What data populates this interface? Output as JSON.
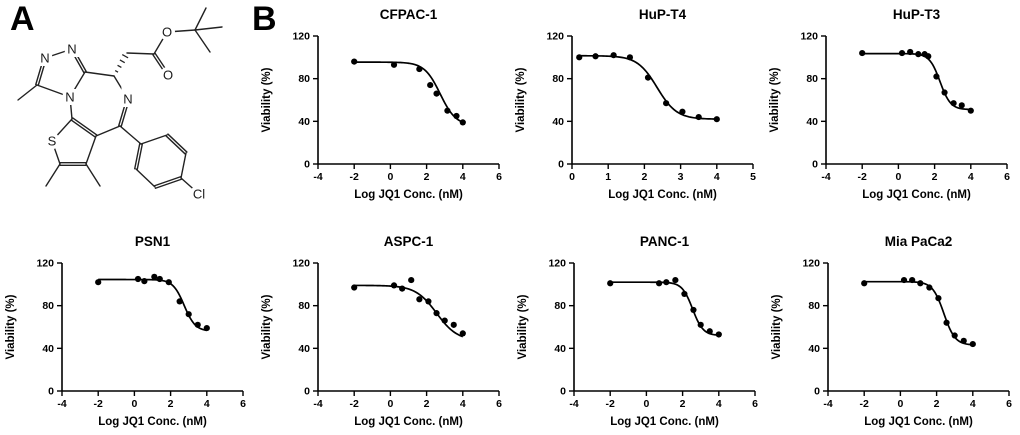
{
  "panel_a": {
    "label": "A",
    "molecule_name": "jq1-structure",
    "atom_labels": {
      "n1": "N",
      "n2": "N",
      "n4": "N",
      "n5": "N",
      "s": "S",
      "o_carbonyl": "O",
      "o_ester": "O",
      "cl": "Cl"
    }
  },
  "panel_b": {
    "label": "B"
  },
  "chart_data": [
    {
      "type": "scatter",
      "title": "CFPAC-1",
      "xlabel": "Log JQ1 Conc.  (nM)",
      "ylabel": "Viability (%)",
      "xlim": [
        -4,
        6
      ],
      "xticks": [
        -4,
        -2,
        0,
        2,
        4,
        6
      ],
      "ylim": [
        0,
        120
      ],
      "yticks": [
        0,
        40,
        80,
        120
      ],
      "grid": false,
      "legend": null,
      "marker": "filled-circle",
      "color": "#000000",
      "x": [
        -2,
        0.2,
        1.6,
        2.2,
        2.55,
        3.15,
        3.65,
        4.0
      ],
      "y": [
        96,
        93,
        89,
        74,
        66,
        50,
        45,
        39
      ],
      "fit_curve": {
        "model": "four-parameter-logistic",
        "top": 95.5,
        "bottom": 36,
        "logec50": 2.75,
        "hill": 1.0
      }
    },
    {
      "type": "scatter",
      "title": "HuP-T4",
      "xlabel": "Log JQ1 Conc.  (nM)",
      "ylabel": "Viability (%)",
      "xlim": [
        0,
        5
      ],
      "xticks": [
        0,
        1,
        2,
        3,
        4,
        5
      ],
      "ylim": [
        0,
        120
      ],
      "yticks": [
        0,
        40,
        80,
        120
      ],
      "grid": false,
      "legend": null,
      "marker": "filled-circle",
      "color": "#000000",
      "x": [
        0.2,
        0.65,
        1.15,
        1.6,
        2.1,
        2.6,
        3.05,
        3.5,
        4.0
      ],
      "y": [
        100,
        101,
        102,
        100,
        81,
        57,
        49,
        44,
        42
      ],
      "fit_curve": {
        "model": "four-parameter-logistic",
        "top": 101.5,
        "bottom": 42,
        "logec50": 2.35,
        "hill": 1.6
      }
    },
    {
      "type": "scatter",
      "title": "HuP-T3",
      "xlabel": "Log JQ1 Conc.  (nM)",
      "ylabel": "Viability (%)",
      "xlim": [
        -4,
        6
      ],
      "xticks": [
        -4,
        -2,
        0,
        2,
        4,
        6
      ],
      "ylim": [
        0,
        120
      ],
      "yticks": [
        0,
        40,
        80,
        120
      ],
      "grid": false,
      "legend": null,
      "marker": "filled-circle",
      "color": "#000000",
      "x": [
        -2,
        0.2,
        0.65,
        1.1,
        1.45,
        1.65,
        2.1,
        2.55,
        3.05,
        3.5,
        4.0
      ],
      "y": [
        104,
        104,
        105,
        103,
        103,
        101,
        82,
        67,
        57,
        55,
        50
      ],
      "fit_curve": {
        "model": "four-parameter-logistic",
        "top": 103.5,
        "bottom": 51,
        "logec50": 2.3,
        "hill": 1.5
      }
    },
    {
      "type": "scatter",
      "title": "PSN1",
      "xlabel": "Log JQ1 Conc.  (nM)",
      "ylabel": "Viability (%)",
      "xlim": [
        -4,
        6
      ],
      "xticks": [
        -4,
        -2,
        0,
        2,
        4,
        6
      ],
      "ylim": [
        0,
        120
      ],
      "yticks": [
        0,
        40,
        80,
        120
      ],
      "grid": false,
      "legend": null,
      "marker": "filled-circle",
      "color": "#000000",
      "x": [
        -2,
        0.2,
        0.55,
        1.1,
        1.4,
        1.9,
        2.5,
        3.0,
        3.5,
        4.0
      ],
      "y": [
        102,
        105,
        103,
        107,
        105,
        102,
        84,
        72,
        62,
        59
      ],
      "fit_curve": {
        "model": "four-parameter-logistic",
        "top": 104.5,
        "bottom": 56,
        "logec50": 2.75,
        "hill": 1.4
      }
    },
    {
      "type": "scatter",
      "title": "ASPC-1",
      "xlabel": "Log JQ1 Conc.  (nM)",
      "ylabel": "Viability (%)",
      "xlim": [
        -4,
        6
      ],
      "xticks": [
        -4,
        -2,
        0,
        2,
        4,
        6
      ],
      "ylim": [
        0,
        120
      ],
      "yticks": [
        0,
        40,
        80,
        120
      ],
      "grid": false,
      "legend": null,
      "marker": "filled-circle",
      "color": "#000000",
      "x": [
        -2,
        0.2,
        0.65,
        1.15,
        1.6,
        2.1,
        2.55,
        3.0,
        3.5,
        4.0
      ],
      "y": [
        97,
        99,
        96,
        104,
        86,
        84,
        73,
        66,
        62,
        54
      ],
      "fit_curve": {
        "model": "four-parameter-logistic",
        "top": 99,
        "bottom": 47,
        "logec50": 2.55,
        "hill": 0.75
      }
    },
    {
      "type": "scatter",
      "title": "PANC-1",
      "xlabel": "Log JQ1 Conc.  (nM)",
      "ylabel": "Viability (%)",
      "xlim": [
        -4,
        6
      ],
      "xticks": [
        -4,
        -2,
        0,
        2,
        4,
        6
      ],
      "ylim": [
        0,
        120
      ],
      "yticks": [
        0,
        40,
        80,
        120
      ],
      "grid": false,
      "legend": null,
      "marker": "filled-circle",
      "color": "#000000",
      "x": [
        -2,
        0.7,
        1.1,
        1.6,
        2.1,
        2.6,
        3.0,
        3.5,
        4.0
      ],
      "y": [
        101,
        101,
        102,
        104,
        91,
        76,
        62,
        56,
        53
      ],
      "fit_curve": {
        "model": "four-parameter-logistic",
        "top": 102,
        "bottom": 52,
        "logec50": 2.55,
        "hill": 1.5
      }
    },
    {
      "type": "scatter",
      "title": "Mia PaCa2",
      "xlabel": "Log JQ1 Conc.  (nM)",
      "ylabel": "Viability (%)",
      "xlim": [
        -4,
        6
      ],
      "xticks": [
        -4,
        -2,
        0,
        2,
        4,
        6
      ],
      "ylim": [
        0,
        120
      ],
      "yticks": [
        0,
        40,
        80,
        120
      ],
      "grid": false,
      "legend": null,
      "marker": "filled-circle",
      "color": "#000000",
      "x": [
        -2,
        0.2,
        0.65,
        1.1,
        1.6,
        2.1,
        2.55,
        3.0,
        3.5,
        4.0
      ],
      "y": [
        101,
        104,
        104,
        101,
        97,
        87,
        64,
        52,
        47,
        44
      ],
      "fit_curve": {
        "model": "four-parameter-logistic",
        "top": 102.5,
        "bottom": 43,
        "logec50": 2.4,
        "hill": 1.4
      }
    }
  ]
}
